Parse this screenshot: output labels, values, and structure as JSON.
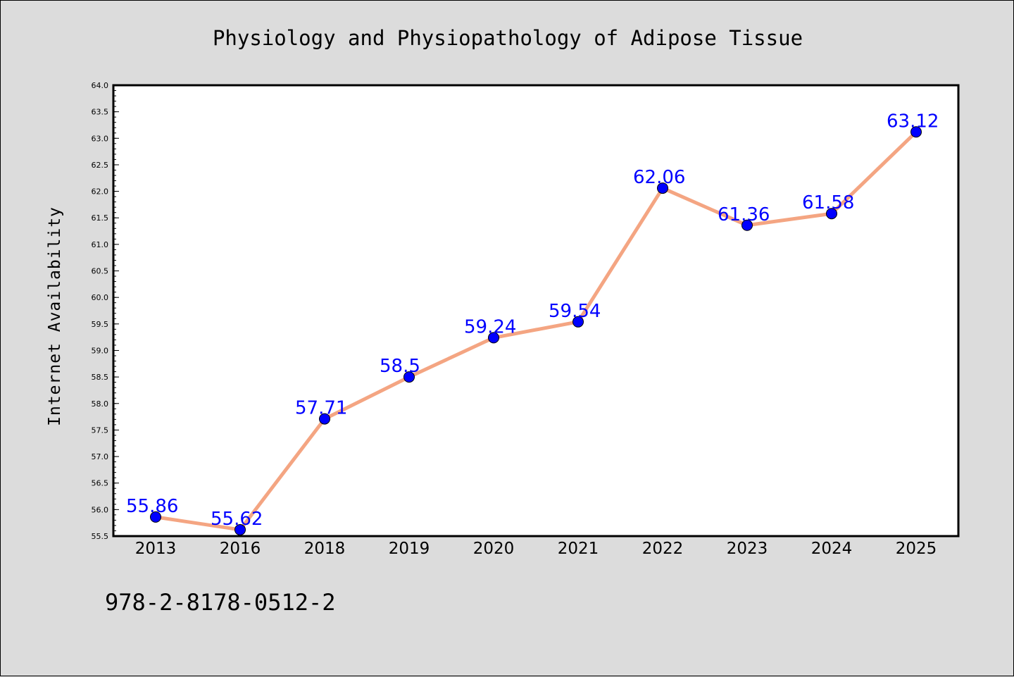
{
  "footer_code": "978-2-8178-0512-2",
  "colors": {
    "background": "#dcdcdc",
    "plot_background": "#ffffff",
    "line": "#f4a582",
    "marker": "#0000ff",
    "data_label": "#0000ff"
  },
  "chart_data": {
    "type": "line",
    "title": "Physiology and Physiopathology of Adipose Tissue",
    "xlabel": "",
    "ylabel": "Internet Availability",
    "categories": [
      "2013",
      "2016",
      "2018",
      "2019",
      "2020",
      "2021",
      "2022",
      "2023",
      "2024",
      "2025"
    ],
    "series": [
      {
        "values": [
          55.86,
          55.62,
          57.71,
          58.5,
          59.24,
          59.54,
          62.06,
          61.36,
          61.58,
          63.12
        ]
      }
    ],
    "data_labels": [
      "55.86",
      "55.62",
      "57.71",
      "58.5",
      "59.24",
      "59.54",
      "62.06",
      "61.36",
      "61.58",
      "63.12"
    ],
    "ylim": [
      55.5,
      64.0
    ],
    "yticks": [
      "55.5",
      "56.0",
      "56.5",
      "57.0",
      "57.5",
      "58.0",
      "58.5",
      "59.0",
      "59.5",
      "60.0",
      "60.5",
      "61.0",
      "61.5",
      "62.0",
      "62.5",
      "63.0",
      "63.5",
      "64.0"
    ],
    "grid": false,
    "legend": "none"
  }
}
